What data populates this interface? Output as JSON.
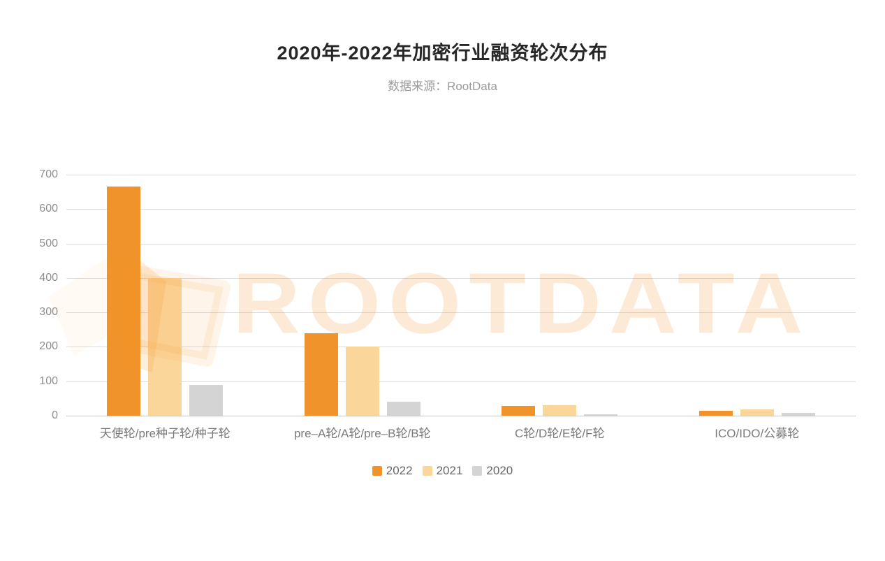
{
  "header": {
    "title": "2020年-2022年加密行业融资轮次分布",
    "subtitle": "数据来源：RootData"
  },
  "watermark": {
    "text": "ROOTDATA"
  },
  "chart_data": {
    "type": "bar",
    "title": "2020年-2022年加密行业融资轮次分布",
    "source_note": "数据来源：RootData",
    "categories": [
      "天使轮/pre种子轮/种子轮",
      "pre–A轮/A轮/pre–B轮/B轮",
      "C轮/D轮/E轮/F轮",
      "ICO/IDO/公募轮"
    ],
    "series": [
      {
        "name": "2022",
        "color": "#F0932A",
        "values": [
          665,
          240,
          28,
          14
        ]
      },
      {
        "name": "2021",
        "color": "#FBD69B",
        "values": [
          400,
          200,
          31,
          18
        ]
      },
      {
        "name": "2020",
        "color": "#D4D4D4",
        "values": [
          90,
          40,
          5,
          9
        ]
      }
    ],
    "ylim": [
      0,
      700
    ],
    "yticks": [
      0,
      100,
      200,
      300,
      400,
      500,
      600,
      700
    ],
    "grid": true,
    "legend_position": "bottom"
  },
  "colors": {
    "background": "#FFFFFF",
    "title_text": "#262626",
    "subtitle_text": "#9B9B9B",
    "axis_label": "#8E8E8E",
    "category_label": "#7A7A7A",
    "legend_text": "#666666",
    "gridline": "#DCDCDC",
    "axis_baseline": "#C6C6C6",
    "watermark": "rgba(244,150,50,0.20)",
    "watermark_logo": "rgba(244,150,50,0.13)"
  }
}
